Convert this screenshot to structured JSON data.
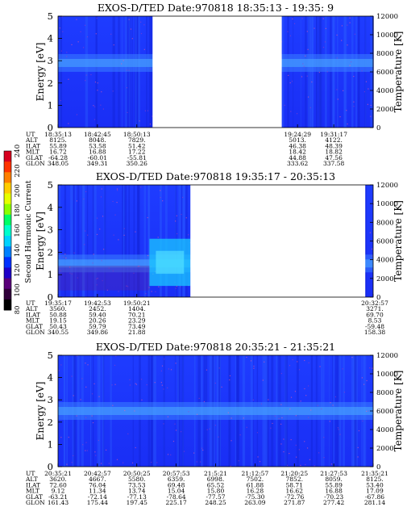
{
  "colorbar": {
    "title": "Second Harmonic Current",
    "ticks": [
      "240",
      "220",
      "200",
      "180",
      "160",
      "140",
      "120",
      "100",
      "80"
    ],
    "colors": [
      "#d7001f",
      "#ff3300",
      "#ff7f00",
      "#ffcc00",
      "#e6ff00",
      "#8cff00",
      "#00ff66",
      "#00ffcc",
      "#00d2ff",
      "#0080ff",
      "#0030ff",
      "#1e00c8",
      "#5a007a",
      "#30003a",
      "#000000"
    ]
  },
  "chart_data": [
    {
      "type": "heatmap",
      "title": "EXOS-D/TED   Date:970818  18:35:13 - 19:35: 9",
      "ylabel": "Energy [eV]",
      "ylabel_right": "Temperature [K]",
      "ylim": [
        0,
        5
      ],
      "ylim_right": [
        0,
        12000
      ],
      "yticks": [
        "0",
        "1",
        "2",
        "3",
        "4",
        "5"
      ],
      "yticks_right": [
        "0",
        "2000",
        "4000",
        "6000",
        "8000",
        "10000",
        "12000"
      ],
      "data_gaps": [
        [
          0.3,
          0.71
        ]
      ],
      "band": {
        "center_eV": 2.9,
        "note": "dense blue spectrum with brighter band near 2.9 eV"
      },
      "table_rows": [
        "UT",
        "ALT",
        "ILAT",
        "MLT",
        "GLAT",
        "GLON"
      ],
      "table_cols": [
        {
          "t": 0.0,
          "values": [
            "18:35:13",
            "8125.",
            "55.89",
            "16.72",
            "-64.28",
            "348.05"
          ]
        },
        {
          "t": 0.125,
          "values": [
            "18:42:45",
            "8048.",
            "53.58",
            "16.88",
            "-60.01",
            "349.31"
          ]
        },
        {
          "t": 0.25,
          "values": [
            "18:50:13",
            "7829.",
            "51.42",
            "17.22",
            "-55.81",
            "350.26"
          ]
        },
        {
          "t": 0.76,
          "values": [
            "19:24:29",
            "5013.",
            "46.38",
            "18.42",
            "44.88",
            "333.62"
          ]
        },
        {
          "t": 0.875,
          "values": [
            "19:31:17",
            "4122.",
            "48.39",
            "18.82",
            "47.56",
            "337.58"
          ]
        }
      ]
    },
    {
      "type": "heatmap",
      "title": "EXOS-D/TED   Date:970818  19:35:17 - 20:35:13",
      "ylabel": "Energy [eV]",
      "ylabel_right": "Temperature [K]",
      "ylim": [
        0,
        5
      ],
      "ylim_right": [
        0,
        12000
      ],
      "yticks": [
        "0",
        "1",
        "2",
        "3",
        "4",
        "5"
      ],
      "yticks_right": [
        "0",
        "2000",
        "4000",
        "6000",
        "8000",
        "10000",
        "12000"
      ],
      "data_gaps": [
        [
          0.42,
          0.975
        ]
      ],
      "band": {
        "center_eV": 1.5,
        "note": "spectrum with bright cyan patch near 1–2 eV"
      },
      "table_rows": [
        "UT",
        "ALT",
        "ILAT",
        "MLT",
        "GLAT",
        "GLON"
      ],
      "table_cols": [
        {
          "t": 0.0,
          "values": [
            "19:35:17",
            "3560.",
            "50.88",
            "19.15",
            "50.43",
            "340.55"
          ]
        },
        {
          "t": 0.125,
          "values": [
            "19:42:53",
            "2452.",
            "59.40",
            "20.26",
            "59.79",
            "349.86"
          ]
        },
        {
          "t": 0.25,
          "values": [
            "19:50:21",
            "1404.",
            "70.21",
            "23.29",
            "73.49",
            "21.88"
          ]
        },
        {
          "t": 1.0,
          "values": [
            "20:32:57",
            "3271.",
            "69.70",
            "8.53",
            "-59.48",
            "158.38"
          ]
        }
      ]
    },
    {
      "type": "heatmap",
      "title": "EXOS-D/TED   Date:970818  20:35:21 - 21:35:21",
      "ylabel": "Energy [eV]",
      "ylabel_right": "Temperature [K]",
      "ylim": [
        0,
        5
      ],
      "ylim_right": [
        0,
        12000
      ],
      "yticks": [
        "0",
        "1",
        "2",
        "3",
        "4",
        "5"
      ],
      "yticks_right": [
        "0",
        "2000",
        "4000",
        "6000",
        "8000",
        "10000",
        "12000"
      ],
      "data_gaps": [],
      "band": {
        "center_eV": 2.5,
        "note": "uniform blue spectrum"
      },
      "table_rows": [
        "UT",
        "ALT",
        "ILAT",
        "MLT",
        "GLAT",
        "GLON"
      ],
      "table_cols": [
        {
          "t": 0.0,
          "values": [
            "20:35:21",
            "3620.",
            "72.60",
            "9.12",
            "-63.21",
            "161.43"
          ]
        },
        {
          "t": 0.125,
          "values": [
            "20:42:57",
            "4667.",
            "76.04",
            "11.34",
            "-72.14",
            "175.44"
          ]
        },
        {
          "t": 0.25,
          "values": [
            "20:50:25",
            "5580.",
            "73.53",
            "13.74",
            "-77.13",
            "197.45"
          ]
        },
        {
          "t": 0.375,
          "values": [
            "20:57:53",
            "6359.",
            "69.48",
            "15.04",
            "-78.64",
            "225.17"
          ]
        },
        {
          "t": 0.5,
          "values": [
            "21:5:21",
            "6998.",
            "65.52",
            "15.80",
            "-77.57",
            "248.25"
          ]
        },
        {
          "t": 0.625,
          "values": [
            "21:12:57",
            "7502.",
            "61.88",
            "16.28",
            "-75.30",
            "263.09"
          ]
        },
        {
          "t": 0.75,
          "values": [
            "21:20:25",
            "7852.",
            "58.71",
            "16.62",
            "-72.76",
            "271.87"
          ]
        },
        {
          "t": 0.875,
          "values": [
            "21:27:53",
            "8059.",
            "55.89",
            "16.88",
            "-70.23",
            "277.42"
          ]
        },
        {
          "t": 1.0,
          "values": [
            "21:35:21",
            "8125.",
            "53.40",
            "17.09",
            "-67.86",
            "281.14"
          ]
        }
      ]
    }
  ]
}
